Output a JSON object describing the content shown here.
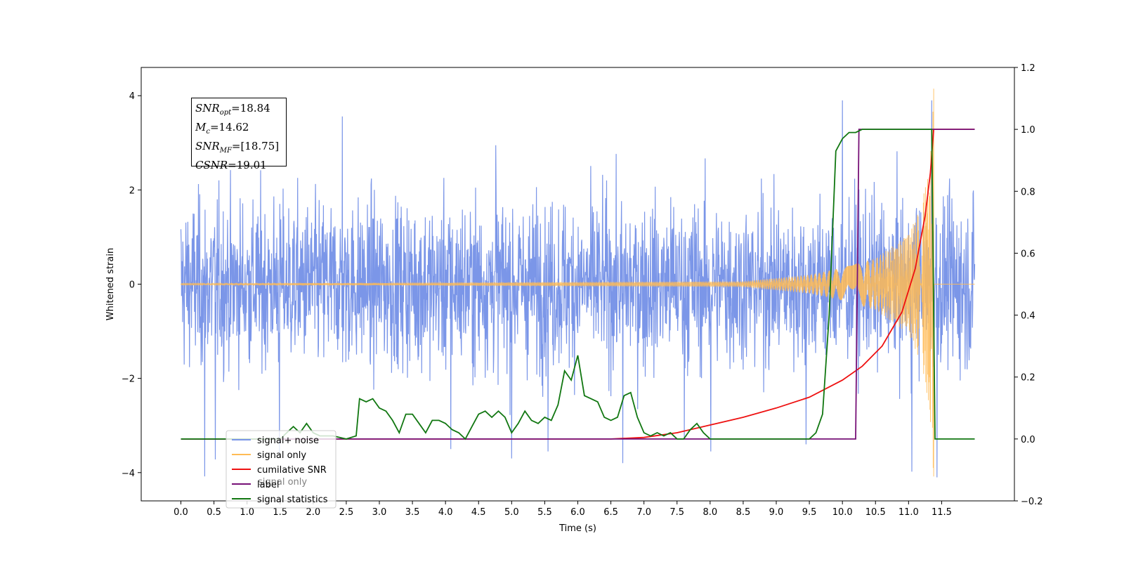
{
  "chart_data": {
    "type": "line",
    "xlabel": "Time (s)",
    "ylabel": "Whitened strain",
    "xlim": [
      -0.6,
      12.6
    ],
    "ylim": [
      -4.6,
      4.6
    ],
    "y2lim": [
      -0.2,
      1.2
    ],
    "x_ticks": [
      "0.0",
      "0.5",
      "1.0",
      "1.5",
      "2.0",
      "2.5",
      "3.0",
      "3.5",
      "4.0",
      "4.5",
      "5.0",
      "5.5",
      "6.0",
      "6.5",
      "7.0",
      "7.5",
      "8.0",
      "8.5",
      "9.0",
      "9.5",
      "10.0",
      "10.5",
      "11.0",
      "11.5"
    ],
    "y_ticks": [
      "−4",
      "−2",
      "0",
      "2",
      "4"
    ],
    "y2_ticks": [
      "−0.2",
      "0.0",
      "0.2",
      "0.4",
      "0.6",
      "0.8",
      "1.0",
      "1.2"
    ],
    "grid": false,
    "legend_position": "lower-left",
    "series": [
      {
        "name": "signal+ noise",
        "axis": "left",
        "color": "#7b96e8",
        "description": "noise band ~±2 (peaks ±3.9) from t=0 to 12.0",
        "envelope": {
          "x": [
            0,
            12.0
          ],
          "typical_amplitude": 2.0
        },
        "spikes": [
          [
            0.36,
            -4.08
          ],
          [
            0.52,
            -3.72
          ],
          [
            1.49,
            -3.58
          ],
          [
            2.44,
            3.56
          ],
          [
            4.08,
            -3.5
          ],
          [
            4.76,
            2.95
          ],
          [
            5.0,
            -3.7
          ],
          [
            5.55,
            -3.55
          ],
          [
            6.68,
            -3.8
          ],
          [
            7.61,
            -3.3
          ],
          [
            8.01,
            -3.55
          ],
          [
            9.45,
            -3.4
          ],
          [
            10.0,
            3.9
          ],
          [
            11.05,
            -3.98
          ],
          [
            11.43,
            -4.1
          ],
          [
            11.35,
            3.9
          ]
        ]
      },
      {
        "name": "signal only",
        "axis": "left",
        "color": "#ffbb55",
        "description": "chirp, merger at t≈11.38",
        "merger_time": 11.38,
        "peak": 4.15,
        "envelope": [
          [
            0,
            0.01
          ],
          [
            8.5,
            0.06
          ],
          [
            9.5,
            0.2
          ],
          [
            10.0,
            0.35
          ],
          [
            10.5,
            0.55
          ],
          [
            11.0,
            1.05
          ],
          [
            11.2,
            1.7
          ],
          [
            11.3,
            2.5
          ],
          [
            11.38,
            4.15
          ]
        ]
      },
      {
        "name": "cumilative SNR",
        "axis": "right",
        "color": "#ee1111",
        "x": [
          0,
          6.5,
          7.0,
          7.5,
          8.0,
          8.5,
          9.0,
          9.5,
          10.0,
          10.3,
          10.6,
          10.9,
          11.1,
          11.25,
          11.33,
          11.38,
          11.5,
          12.0
        ],
        "y": [
          0,
          0.0,
          0.005,
          0.02,
          0.045,
          0.07,
          0.1,
          0.135,
          0.19,
          0.235,
          0.3,
          0.41,
          0.55,
          0.72,
          0.86,
          1.0,
          1.0,
          1.0
        ]
      },
      {
        "name": "label",
        "axis": "right",
        "color": "#771177",
        "x": [
          0,
          10.18,
          10.2,
          10.25,
          11.38,
          11.4,
          12.0
        ],
        "y": [
          0,
          0,
          0.0,
          1.0,
          1.0,
          1.0,
          1.0
        ]
      },
      {
        "name": "signal statistics",
        "axis": "right",
        "color": "#117711",
        "x": [
          0,
          1.5,
          1.6,
          1.7,
          1.8,
          1.9,
          2.0,
          2.1,
          2.3,
          2.5,
          2.65,
          2.7,
          2.8,
          2.9,
          3.0,
          3.1,
          3.2,
          3.3,
          3.4,
          3.5,
          3.6,
          3.7,
          3.8,
          3.9,
          4.0,
          4.1,
          4.2,
          4.3,
          4.4,
          4.5,
          4.6,
          4.7,
          4.8,
          4.9,
          5.0,
          5.1,
          5.2,
          5.3,
          5.4,
          5.5,
          5.6,
          5.7,
          5.8,
          5.9,
          6.0,
          6.1,
          6.2,
          6.3,
          6.4,
          6.5,
          6.6,
          6.7,
          6.8,
          6.9,
          7.0,
          7.1,
          7.2,
          7.3,
          7.4,
          7.5,
          7.6,
          7.7,
          7.8,
          7.9,
          8.0,
          8.2,
          9.0,
          9.3,
          9.5,
          9.6,
          9.7,
          9.8,
          9.9,
          10.0,
          10.1,
          10.2,
          10.3,
          11.35,
          11.4,
          12.0
        ],
        "y": [
          0,
          0.0,
          0.02,
          0.04,
          0.02,
          0.05,
          0.02,
          0.01,
          0.01,
          0.0,
          0.01,
          0.13,
          0.12,
          0.13,
          0.1,
          0.09,
          0.06,
          0.02,
          0.08,
          0.08,
          0.05,
          0.02,
          0.06,
          0.06,
          0.05,
          0.03,
          0.02,
          0.0,
          0.04,
          0.08,
          0.09,
          0.07,
          0.09,
          0.07,
          0.02,
          0.05,
          0.09,
          0.06,
          0.05,
          0.07,
          0.06,
          0.11,
          0.22,
          0.19,
          0.27,
          0.14,
          0.13,
          0.12,
          0.07,
          0.06,
          0.07,
          0.14,
          0.15,
          0.07,
          0.02,
          0.01,
          0.02,
          0.01,
          0.02,
          0.0,
          0.0,
          0.03,
          0.05,
          0.02,
          0.0,
          0.0,
          0.0,
          0.0,
          0.0,
          0.02,
          0.08,
          0.4,
          0.93,
          0.97,
          0.99,
          0.99,
          1.0,
          1.0,
          0.0,
          0.0
        ]
      }
    ],
    "annotation": {
      "snr_opt": "=18.84",
      "mc": "=14.62",
      "snr_mf": "=[18.75]",
      "csnr": "=19.01"
    },
    "legend_overlap_text": "signal only"
  },
  "annotation_labels": {
    "snr": "SNR",
    "opt": "opt",
    "m": "M",
    "c": "c",
    "mf": "MF",
    "csnr": "CSNR"
  }
}
